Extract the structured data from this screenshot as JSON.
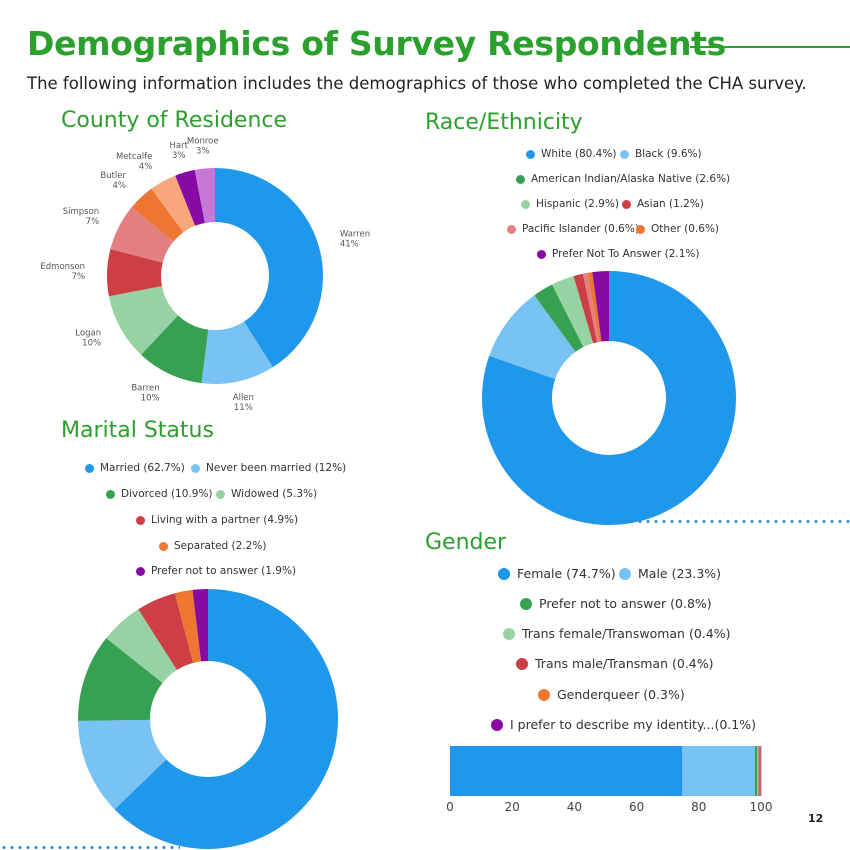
{
  "header": {
    "title": "Demographics of Survey Respondents",
    "intro": "The following information includes the demographics of those who completed the CHA survey."
  },
  "sections": {
    "county": "County of Residence",
    "race": "Race/Ethnicity",
    "marital": "Marital Status",
    "gender": "Gender"
  },
  "page_number": "12",
  "colors": {
    "brand_green": "#2ba02d",
    "dotted_line": "#1e90e8"
  },
  "chart_data": [
    {
      "id": "county",
      "type": "pie",
      "title": "County of Residence",
      "labels": [
        "Warren",
        "Allen",
        "Barren",
        "Logan",
        "Edmonson",
        "Simpson",
        "Butler",
        "Metcalfe",
        "Hart",
        "Monroe"
      ],
      "values": [
        41,
        11,
        10,
        10,
        7,
        7,
        4,
        4,
        3,
        3
      ],
      "value_labels": [
        "41%",
        "11%",
        "10%",
        "10%",
        "7%",
        "7%",
        "4%",
        "4%",
        "3%",
        "3%"
      ],
      "colors": [
        "#1f97ea",
        "#79c2f4",
        "#36a150",
        "#97d3a2",
        "#cd3f44",
        "#e37f81",
        "#ec7632",
        "#f8a77c",
        "#860aa3",
        "#c677d8"
      ]
    },
    {
      "id": "race",
      "type": "pie",
      "title": "Race/Ethnicity",
      "labels": [
        "White (80.4%)",
        "Black (9.6%)",
        "American Indian/Alaska Native (2.6%)",
        "Hispanic (2.9%)",
        "Asian (1.2%)",
        "Pacific Islander (0.6%)",
        "Other (0.6%)",
        "Prefer Not To Answer (2.1%)"
      ],
      "values": [
        80.4,
        9.6,
        2.6,
        2.9,
        1.2,
        0.6,
        0.6,
        2.1
      ],
      "colors": [
        "#1f97ea",
        "#79c2f4",
        "#36a150",
        "#97d3a2",
        "#cd3f44",
        "#e37f81",
        "#ec7632",
        "#860aa3"
      ]
    },
    {
      "id": "marital",
      "type": "pie",
      "title": "Marital Status",
      "labels": [
        "Married (62.7%)",
        "Never been married (12%)",
        "Divorced (10.9%)",
        "Widowed (5.3%)",
        "Living with a partner (4.9%)",
        "Separated (2.2%)",
        "Prefer not to answer (1.9%)"
      ],
      "values": [
        62.7,
        12,
        10.9,
        5.3,
        4.9,
        2.2,
        1.9
      ],
      "colors": [
        "#1f97ea",
        "#79c2f4",
        "#36a150",
        "#97d3a2",
        "#cd3f44",
        "#ec7632",
        "#860aa3"
      ]
    },
    {
      "id": "gender",
      "type": "bar",
      "orientation": "horizontal-stacked",
      "title": "Gender",
      "labels": [
        "Female (74.7%)",
        "Male (23.3%)",
        "Prefer not to answer (0.8%)",
        "Trans female/Transwoman (0.4%)",
        "Trans male/Transman (0.4%)",
        "Genderqueer (0.3%)",
        "I prefer to describe my identity...(0.1%)"
      ],
      "values": [
        74.7,
        23.3,
        0.8,
        0.4,
        0.4,
        0.3,
        0.1
      ],
      "colors": [
        "#1f97ea",
        "#79c2f4",
        "#36a150",
        "#97d3a2",
        "#cd3f44",
        "#ec7632",
        "#860aa3"
      ],
      "xlim": [
        0,
        100
      ],
      "xticks": [
        "0",
        "20",
        "40",
        "60",
        "80",
        "100"
      ]
    }
  ]
}
